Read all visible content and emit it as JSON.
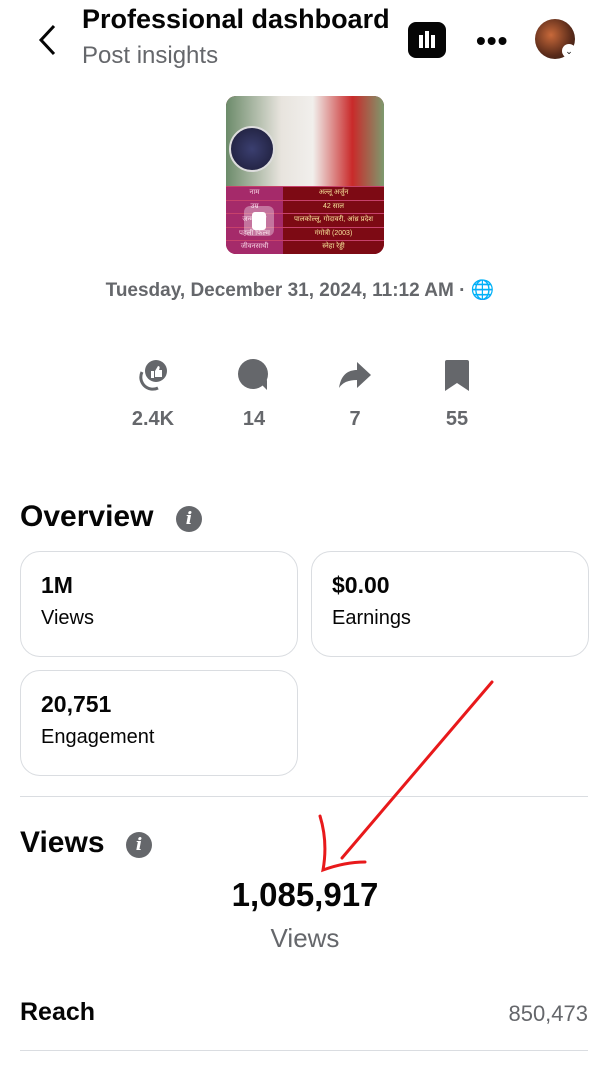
{
  "header": {
    "title": "Professional dashboard",
    "subtitle": "Post insights",
    "back_icon": "chevron-left-icon",
    "chart_icon": "bar-chart-icon",
    "more_icon": "more-icon"
  },
  "post": {
    "thumbnail_rows": [
      {
        "k": "नाम",
        "v": "अल्लू अर्जुन"
      },
      {
        "k": "उम्र",
        "v": "42 साल"
      },
      {
        "k": "जन्मस्थान",
        "v": "पालकोल्लू, गोदावरी, आंध्र प्रदेश"
      },
      {
        "k": "पहली फिल्म",
        "v": "गंगोत्री (2003)"
      },
      {
        "k": "जीवनसाथी",
        "v": "स्नेहा रेड्डी"
      }
    ],
    "date": "Tuesday, December 31, 2024, 11:12 AM ·",
    "stats": [
      {
        "icon": "reactions-icon",
        "value": "2.4K"
      },
      {
        "icon": "comment-icon",
        "value": "14"
      },
      {
        "icon": "share-icon",
        "value": "7"
      },
      {
        "icon": "bookmark-icon",
        "value": "55"
      }
    ]
  },
  "overview": {
    "title": "Overview",
    "cards": [
      {
        "value": "1M",
        "label": "Views"
      },
      {
        "value": "$0.00",
        "label": "Earnings"
      },
      {
        "value": "20,751",
        "label": "Engagement"
      }
    ]
  },
  "views": {
    "title": "Views",
    "total": "1,085,917",
    "total_label": "Views",
    "reach_label": "Reach",
    "reach_value": "850,473"
  },
  "colors": {
    "annotation_arrow": "#e8191b",
    "secondary_text": "#65676b"
  }
}
